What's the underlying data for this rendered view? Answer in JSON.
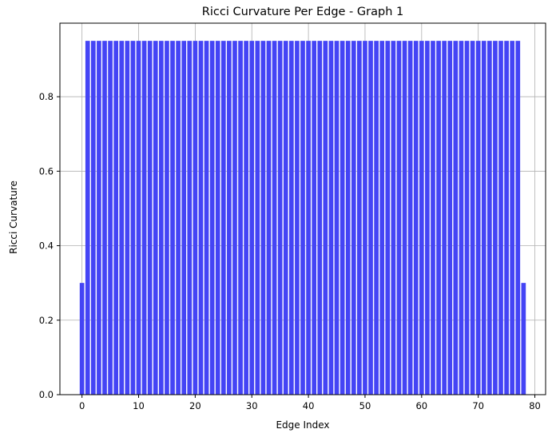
{
  "chart_data": {
    "type": "bar",
    "title": "Ricci Curvature Per Edge - Graph 1",
    "xlabel": "Edge Index",
    "ylabel": "Ricci Curvature",
    "x": [
      0,
      1,
      2,
      3,
      4,
      5,
      6,
      7,
      8,
      9,
      10,
      11,
      12,
      13,
      14,
      15,
      16,
      17,
      18,
      19,
      20,
      21,
      22,
      23,
      24,
      25,
      26,
      27,
      28,
      29,
      30,
      31,
      32,
      33,
      34,
      35,
      36,
      37,
      38,
      39,
      40,
      41,
      42,
      43,
      44,
      45,
      46,
      47,
      48,
      49,
      50,
      51,
      52,
      53,
      54,
      55,
      56,
      57,
      58,
      59,
      60,
      61,
      62,
      63,
      64,
      65,
      66,
      67,
      68,
      69,
      70,
      71,
      72,
      73,
      74,
      75,
      76,
      77,
      78
    ],
    "values": [
      0.3,
      0.95,
      0.95,
      0.95,
      0.95,
      0.95,
      0.95,
      0.95,
      0.95,
      0.95,
      0.95,
      0.95,
      0.95,
      0.95,
      0.95,
      0.95,
      0.95,
      0.95,
      0.95,
      0.95,
      0.95,
      0.95,
      0.95,
      0.95,
      0.95,
      0.95,
      0.95,
      0.95,
      0.95,
      0.95,
      0.95,
      0.95,
      0.95,
      0.95,
      0.95,
      0.95,
      0.95,
      0.95,
      0.95,
      0.95,
      0.95,
      0.95,
      0.95,
      0.95,
      0.95,
      0.95,
      0.95,
      0.95,
      0.95,
      0.95,
      0.95,
      0.95,
      0.95,
      0.95,
      0.95,
      0.95,
      0.95,
      0.95,
      0.95,
      0.95,
      0.95,
      0.95,
      0.95,
      0.95,
      0.95,
      0.95,
      0.95,
      0.95,
      0.95,
      0.95,
      0.95,
      0.95,
      0.95,
      0.95,
      0.95,
      0.95,
      0.95,
      0.95,
      0.3
    ],
    "xlim": [
      -3.9,
      81.9
    ],
    "ylim": [
      0,
      0.9975
    ],
    "xticks": [
      0,
      10,
      20,
      30,
      40,
      50,
      60,
      70,
      80
    ],
    "xtick_labels": [
      "0",
      "10",
      "20",
      "30",
      "40",
      "50",
      "60",
      "70",
      "80"
    ],
    "yticks": [
      0,
      0.2,
      0.4,
      0.6,
      0.8
    ],
    "ytick_labels": [
      "0.0",
      "0.2",
      "0.4",
      "0.6",
      "0.8"
    ],
    "bar_color": "#4444f5",
    "bar_width_data_units": 0.8,
    "grid": true,
    "legend": "none"
  }
}
